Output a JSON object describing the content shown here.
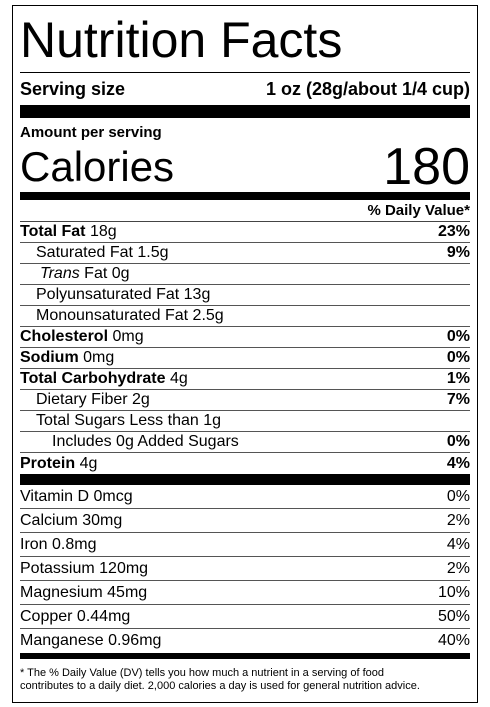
{
  "title": "Nutrition Facts",
  "serving": {
    "label": "Serving size",
    "value": "1 oz (28g/about 1/4 cup)"
  },
  "calories": {
    "heading": "Amount per serving",
    "label": "Calories",
    "value": 180
  },
  "dv_header": "% Daily Value*",
  "nutrients": [
    {
      "name": "Total Fat",
      "amount": "18g",
      "dv": "23%"
    },
    {
      "name": "Saturated Fat 1.5g",
      "dv": "9%"
    },
    {
      "name_italic": "Trans",
      "name": "Fat 0g"
    },
    {
      "name": "Polyunsaturated Fat 13g"
    },
    {
      "name": "Monounsaturated Fat 2.5g"
    },
    {
      "name": "Cholesterol",
      "amount": "0mg",
      "dv": "0%"
    },
    {
      "name": "Sodium",
      "amount": "0mg",
      "dv": "0%"
    },
    {
      "name": "Total Carbohydrate",
      "amount": "4g",
      "dv": "1%"
    },
    {
      "name": "Dietary Fiber 2g",
      "dv": "7%"
    },
    {
      "name": "Total Sugars Less than 1g"
    },
    {
      "name": "Includes 0g Added Sugars",
      "dv": "0%"
    },
    {
      "name": "Protein",
      "amount": "4g",
      "dv": "4%"
    }
  ],
  "vitamins": [
    {
      "name": "Vitamin D 0mcg",
      "dv": "0%"
    },
    {
      "name": "Calcium 30mg",
      "dv": "2%"
    },
    {
      "name": "Iron 0.8mg",
      "dv": "4%"
    },
    {
      "name": "Potassium 120mg",
      "dv": "2%"
    },
    {
      "name": "Magnesium 45mg",
      "dv": "10%"
    },
    {
      "name": "Copper 0.44mg",
      "dv": "50%"
    },
    {
      "name": "Manganese 0.96mg",
      "dv": "40%"
    }
  ],
  "footnote": [
    "* The % Daily Value (DV) tells you how much a nutrient in a serving of food",
    "contributes to a daily diet. 2,000 calories a day is used for general nutrition advice."
  ]
}
